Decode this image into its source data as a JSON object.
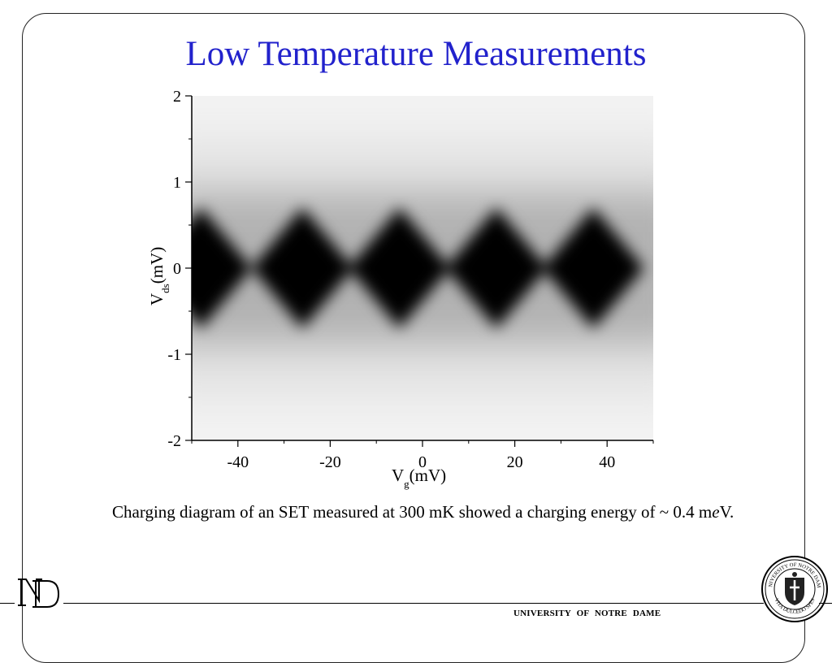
{
  "slide": {
    "title": "Low Temperature Measurements",
    "caption_prefix": "Charging diagram of an SET measured at 300 mK showed a charging energy of ~ 0.4 m",
    "caption_italic": "e",
    "caption_suffix": "V.",
    "footer": "UNIVERSITY OF NOTRE DAME",
    "title_color": "#2222cc"
  },
  "logos": {
    "left_icon": "nd-monogram-icon",
    "right_icon": "university-seal-icon",
    "seal_text_top": "UNIVERSITY OF NOTRE DAME",
    "seal_text_bottom": "VITA DULCEDO SPES"
  },
  "chart_data": {
    "type": "heatmap",
    "title": "",
    "xlabel_main": "V",
    "xlabel_sub": "g",
    "xlabel_unit": "(mV)",
    "ylabel_main": "V",
    "ylabel_sub": "ds",
    "ylabel_unit": "(mV)",
    "xlim": [
      -50,
      50
    ],
    "ylim": [
      -2,
      2
    ],
    "xticks": [
      -40,
      -20,
      0,
      20,
      40
    ],
    "yticks": [
      2,
      1,
      0,
      -1,
      -2
    ],
    "colormap": "grayscale (black = blockade)",
    "diamond_centers_mV": [
      -48,
      -26,
      -5,
      16,
      37
    ],
    "degeneracy_points_mV": [
      -38,
      -16,
      6,
      26,
      48
    ],
    "diamond_half_height_mV": 0.7,
    "grid": false
  }
}
